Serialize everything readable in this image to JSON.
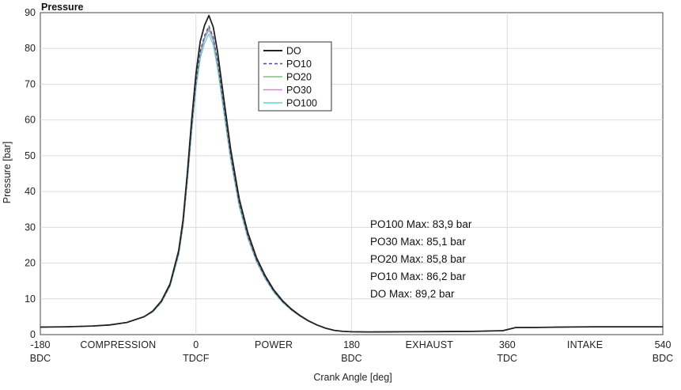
{
  "chart_data": {
    "type": "line",
    "title": "Pressure",
    "xlabel": "Crank Angle [deg]",
    "ylabel": "Pressure [bar]",
    "xlim": [
      -180,
      540
    ],
    "ylim": [
      0,
      90
    ],
    "grid": true,
    "legend_position": "top-center",
    "y_ticks": [
      0,
      10,
      20,
      30,
      40,
      50,
      60,
      70,
      80,
      90
    ],
    "x_ticks": [
      {
        "value": -180,
        "label": "-180",
        "sub": "BDC"
      },
      {
        "value": 0,
        "label": "0",
        "sub": "TDCF"
      },
      {
        "value": 180,
        "label": "180",
        "sub": "BDC"
      },
      {
        "value": 360,
        "label": "360",
        "sub": "TDC"
      },
      {
        "value": 540,
        "label": "540",
        "sub": "BDC"
      }
    ],
    "phase_labels": [
      {
        "x": -90,
        "label": "COMPRESSION"
      },
      {
        "x": 90,
        "label": "POWER"
      },
      {
        "x": 270,
        "label": "EXHAUST"
      },
      {
        "x": 450,
        "label": "INTAKE"
      }
    ],
    "series": [
      {
        "name": "DO",
        "color": "#222222",
        "dash": "solid",
        "peak": 89.2
      },
      {
        "name": "PO10",
        "color": "#4a4aa0",
        "dash": "dashed",
        "peak": 86.2
      },
      {
        "name": "PO20",
        "color": "#7fbf7f",
        "dash": "solid",
        "peak": 85.8
      },
      {
        "name": "PO30",
        "color": "#d08ad0",
        "dash": "solid",
        "peak": 85.1
      },
      {
        "name": "PO100",
        "color": "#66d0d8",
        "dash": "solid",
        "peak": 83.9
      }
    ],
    "curve_shape": {
      "x": [
        -180,
        -150,
        -120,
        -100,
        -80,
        -60,
        -50,
        -40,
        -30,
        -20,
        -15,
        -10,
        -5,
        0,
        5,
        10,
        15,
        20,
        25,
        30,
        40,
        50,
        60,
        70,
        80,
        90,
        100,
        110,
        120,
        130,
        140,
        150,
        160,
        170,
        180,
        200,
        240,
        280,
        320,
        355,
        370,
        390,
        420,
        460,
        500,
        540
      ],
      "y": [
        2.1,
        2.2,
        2.4,
        2.7,
        3.4,
        5.0,
        6.6,
        9.4,
        14.2,
        23.5,
        32,
        45,
        60,
        73,
        82,
        86.5,
        89.2,
        86,
        79,
        70,
        52,
        38,
        28.5,
        21.5,
        16.5,
        12.5,
        9.5,
        7.2,
        5.4,
        3.9,
        2.7,
        1.8,
        1.2,
        0.9,
        0.8,
        0.75,
        0.8,
        0.85,
        0.9,
        1.1,
        2.0,
        2.0,
        2.1,
        2.2,
        2.2,
        2.2
      ]
    },
    "annotations": [
      "PO100 Max: 83,9 bar",
      "PO30 Max: 85,1 bar",
      "PO20 Max: 85,8 bar",
      "PO10 Max: 86,2 bar",
      "DO Max: 89,2 bar"
    ]
  }
}
